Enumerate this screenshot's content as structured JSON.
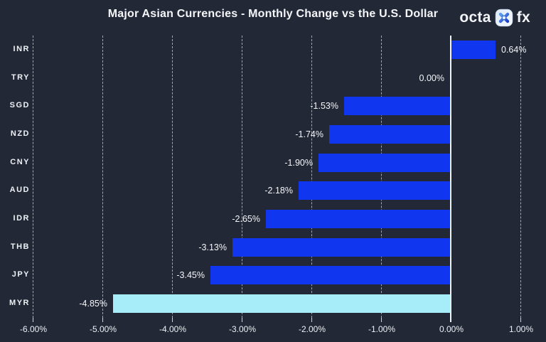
{
  "header": {
    "title": "Major Asian Currencies - Monthly Change vs the U.S. Dollar"
  },
  "brand": {
    "left": "octa",
    "right": "fx"
  },
  "chart_data": {
    "type": "bar",
    "orientation": "horizontal",
    "title": "Major Asian Currencies - Monthly Change vs the U.S. Dollar",
    "categories": [
      "INR",
      "TRY",
      "SGD",
      "NZD",
      "CNY",
      "AUD",
      "IDR",
      "THB",
      "JPY",
      "MYR"
    ],
    "values": [
      0.64,
      0.0,
      -1.53,
      -1.74,
      -1.9,
      -2.18,
      -2.65,
      -3.13,
      -3.45,
      -4.85
    ],
    "value_labels": [
      "0.64%",
      "0.00%",
      "-1.53%",
      "-1.74%",
      "-1.90%",
      "-2.18%",
      "-2.65%",
      "-3.13%",
      "-3.45%",
      "-4.85%"
    ],
    "xlim": [
      -6,
      1
    ],
    "x_ticks": [
      -6,
      -5,
      -4,
      -3,
      -2,
      -1,
      0,
      1
    ],
    "x_tick_labels": [
      "-6.00%",
      "-5.00%",
      "-4.00%",
      "-3.00%",
      "-2.00%",
      "-1.00%",
      "0.00%",
      "1.00%"
    ],
    "grid": true,
    "legend": "none",
    "highlight_index": 9
  },
  "colors": {
    "background": "#222836",
    "bar": "#1036f0",
    "highlight_bar": "#a7ecf9",
    "gridline": "#cdd2da",
    "zero_line": "#f0f2f6",
    "text": "#f4f6f9",
    "brand_x_start": "#5aa0e8",
    "brand_x_end": "#1d3fd0"
  }
}
